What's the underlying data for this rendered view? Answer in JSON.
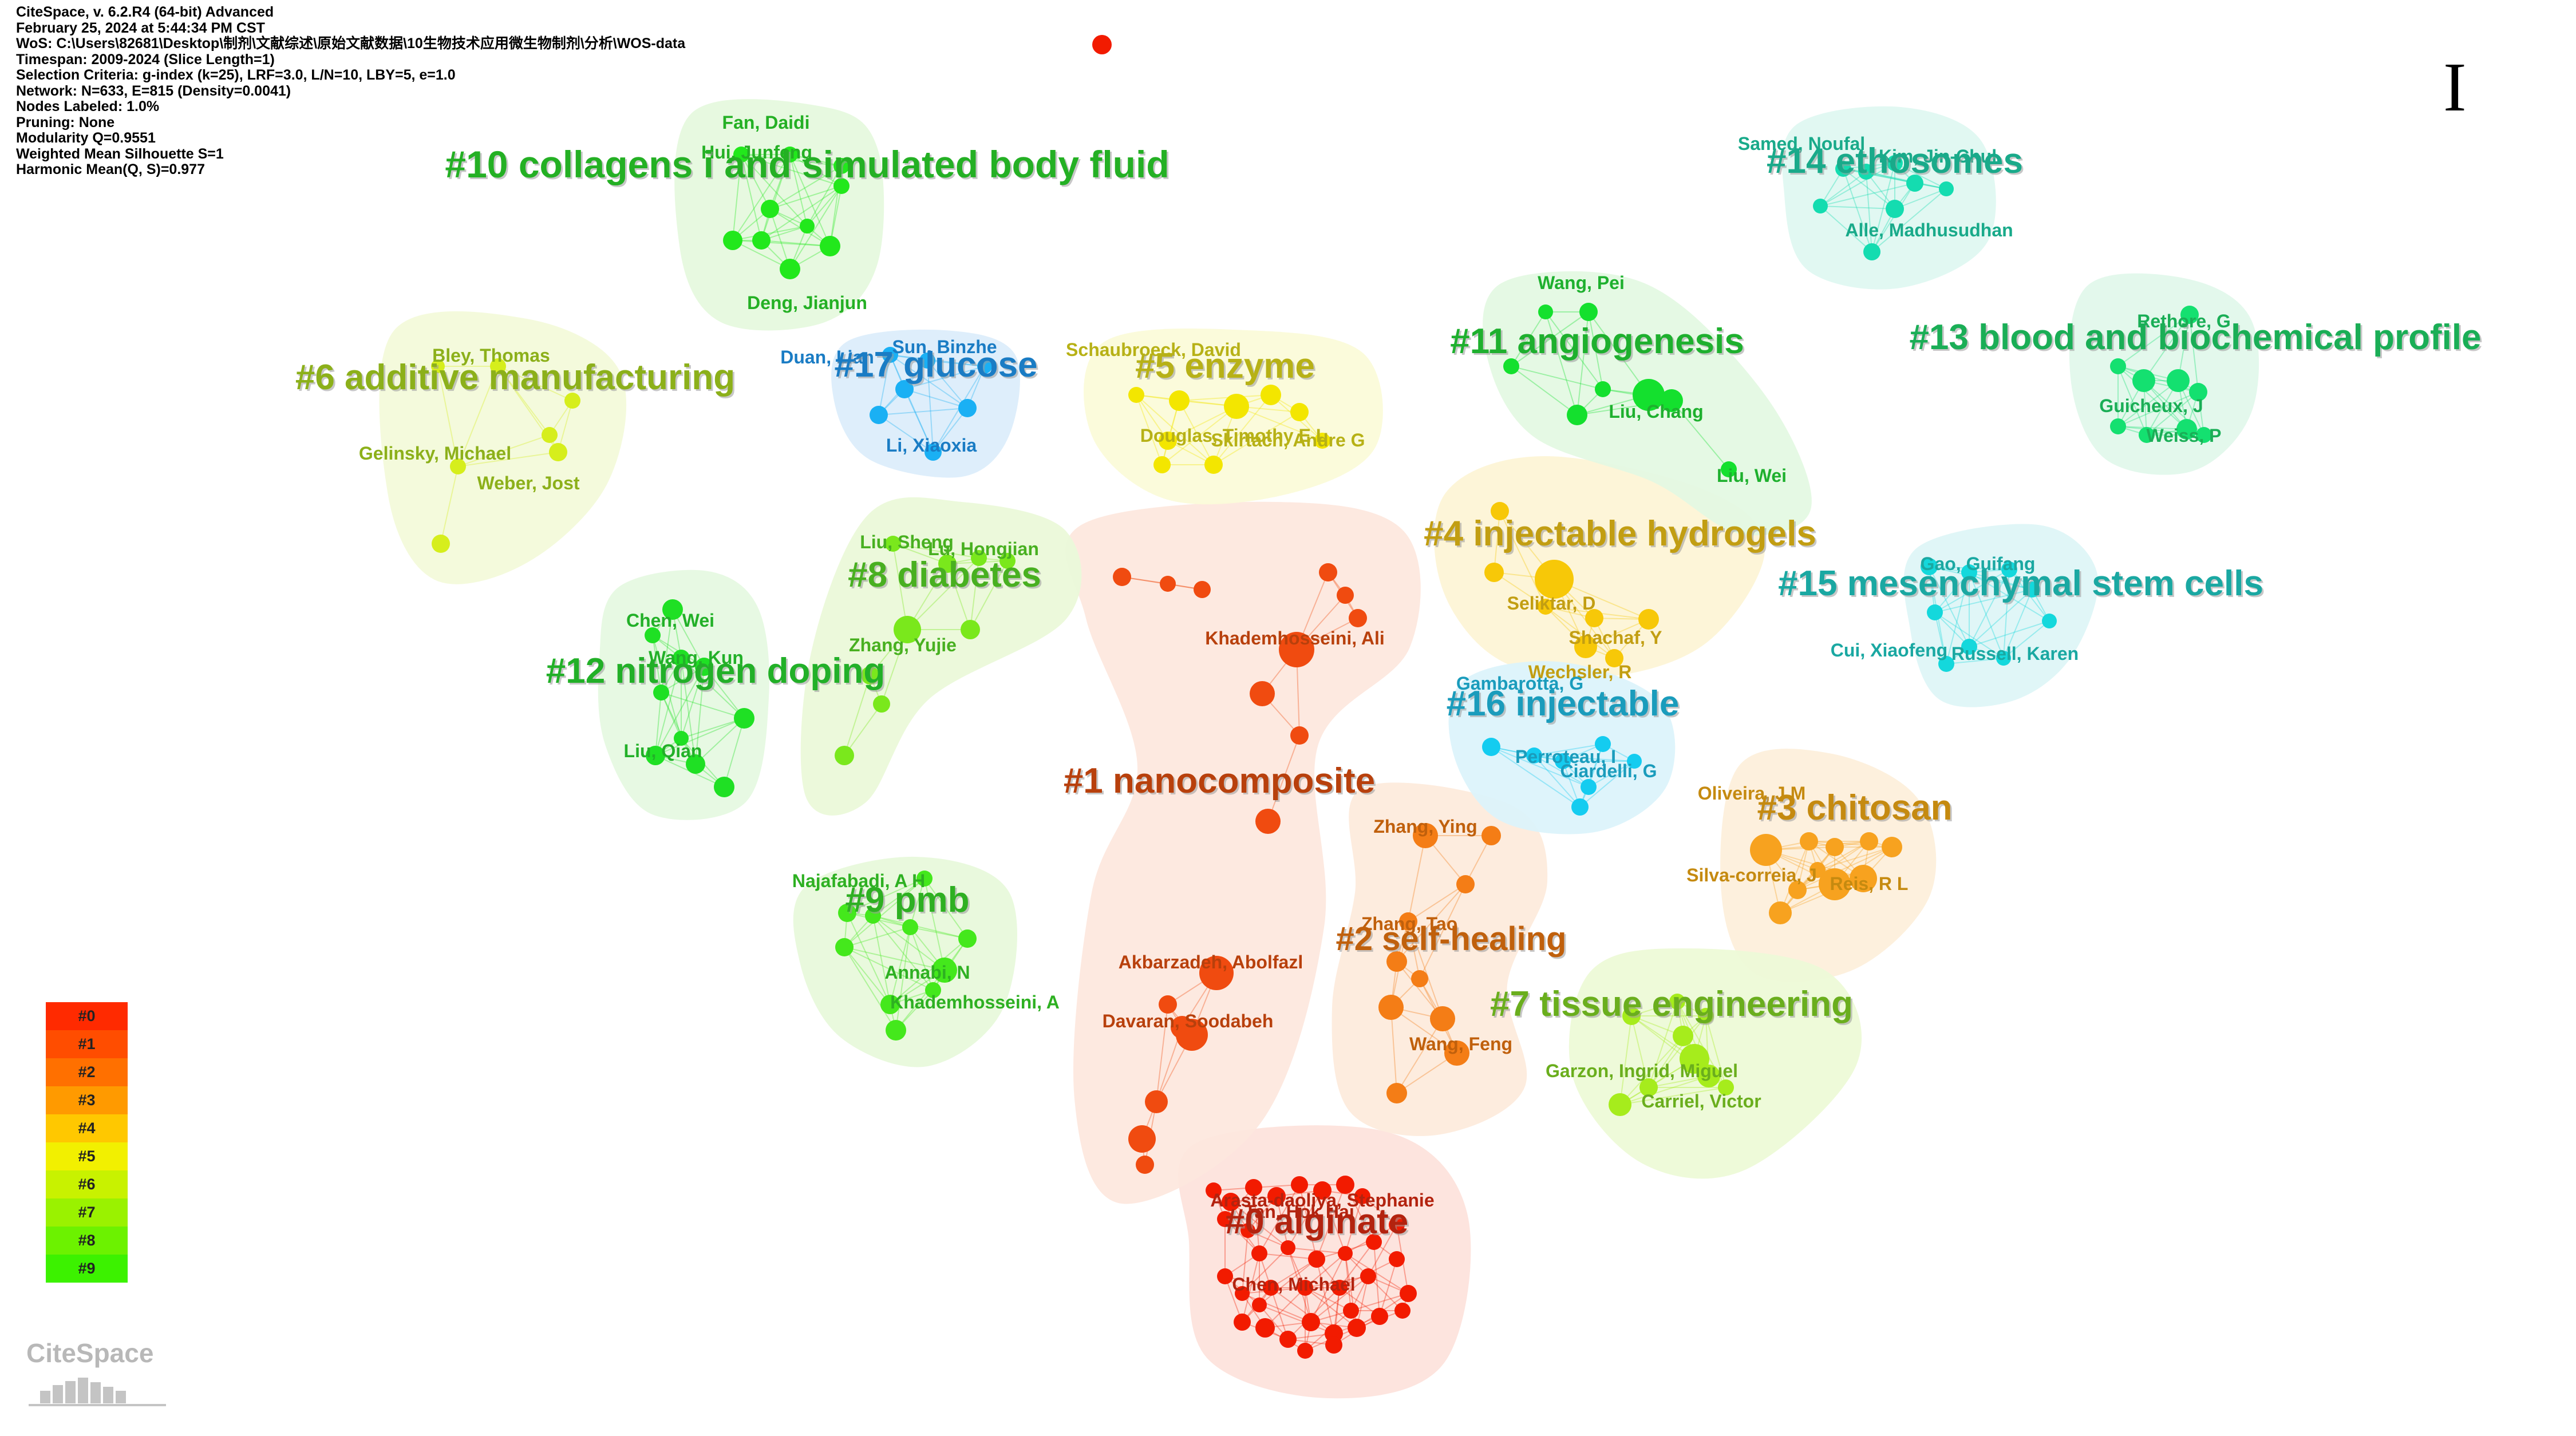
{
  "app": {
    "info_lines": [
      "CiteSpace, v. 6.2.R4 (64-bit) Advanced",
      "February 25, 2024 at 5:44:34 PM CST",
      "WoS: C:\\Users\\82681\\Desktop\\制剂\\文献综述\\原始文献数据\\10生物技术应用微生物制剂\\分析\\WOS-data",
      "Timespan: 2009-2024 (Slice Length=1)",
      "Selection Criteria: g-index (k=25), LRF=3.0, L/N=10, LBY=5, e=1.0",
      "Network: N=633, E=815 (Density=0.0041)",
      "Nodes Labeled: 1.0%",
      "Pruning: None",
      "Modularity Q=0.9551",
      "Weighted Mean Silhouette S=1",
      "Harmonic Mean(Q, S)=0.977"
    ],
    "figure_marker": "I",
    "logo_text": "CiteSpace"
  },
  "legend": {
    "items": [
      {
        "label": "#0",
        "color": "#ff2a00"
      },
      {
        "label": "#1",
        "color": "#ff4d00"
      },
      {
        "label": "#2",
        "color": "#ff7000"
      },
      {
        "label": "#3",
        "color": "#ff9a00"
      },
      {
        "label": "#4",
        "color": "#ffc800"
      },
      {
        "label": "#5",
        "color": "#f2f000"
      },
      {
        "label": "#6",
        "color": "#c8f200"
      },
      {
        "label": "#7",
        "color": "#9af200"
      },
      {
        "label": "#8",
        "color": "#6cf200"
      },
      {
        "label": "#9",
        "color": "#3cf200"
      }
    ]
  },
  "clusters": [
    {
      "id": "c0",
      "label": "#0 alginate",
      "color": "#b3230f",
      "hull": "#fde3dd",
      "node": "#f21b00"
    },
    {
      "id": "c1",
      "label": "#1 nanocomposite",
      "color": "#b8400c",
      "hull": "#fde8df",
      "node": "#f04b10"
    },
    {
      "id": "c2",
      "label": "#2 self-healing",
      "color": "#c0600c",
      "hull": "#fdebdd",
      "node": "#f47d16"
    },
    {
      "id": "c3",
      "label": "#3 chitosan",
      "color": "#c58a10",
      "hull": "#fdf0dc",
      "node": "#f7a21f"
    },
    {
      "id": "c4",
      "label": "#4 injectable hydrogels",
      "color": "#c29e12",
      "hull": "#fdf5d6",
      "node": "#f7c808"
    },
    {
      "id": "c5",
      "label": "#5 enzyme",
      "color": "#b7b116",
      "hull": "#fbfbda",
      "node": "#f3e600"
    },
    {
      "id": "c6",
      "label": "#6 additive manufacturing",
      "color": "#8cb01a",
      "hull": "#f4fadb",
      "node": "#d6ee1c"
    },
    {
      "id": "c7",
      "label": "#7 tissue engineering",
      "color": "#6aae1d",
      "hull": "#eefad8",
      "node": "#a6ec1c"
    },
    {
      "id": "c8",
      "label": "#8 diabetes",
      "color": "#48b020",
      "hull": "#ebf9da",
      "node": "#7ae81c"
    },
    {
      "id": "c9",
      "label": "#9 pmb",
      "color": "#2eb022",
      "hull": "#e8f9dc",
      "node": "#44e81c"
    },
    {
      "id": "c10",
      "label": "#10 collagens i and simulated body fluid",
      "color": "#24b024",
      "hull": "#e6f9df",
      "node": "#22e81c"
    },
    {
      "id": "c11",
      "label": "#11 angiogenesis",
      "color": "#1eb02e",
      "hull": "#e4f9e3",
      "node": "#14e02e"
    },
    {
      "id": "c12",
      "label": "#12 nitrogen doping",
      "color": "#22b028",
      "hull": "#e6f9e2",
      "node": "#1fe024"
    },
    {
      "id": "c13",
      "label": "#13 blood and biochemical profile",
      "color": "#1aae56",
      "hull": "#e2f8ec",
      "node": "#14e070"
    },
    {
      "id": "c14",
      "label": "#14 ethosomes",
      "color": "#19aa8a",
      "hull": "#e0f8f2",
      "node": "#14dcb0"
    },
    {
      "id": "c15",
      "label": "#15 mesenchymal stem cells",
      "color": "#1aa8a2",
      "hull": "#dff6f7",
      "node": "#14d8dc"
    },
    {
      "id": "c16",
      "label": "#16 injectable",
      "color": "#1a9cbc",
      "hull": "#ddf4fb",
      "node": "#14ccf0"
    },
    {
      "id": "c17",
      "label": "#17 glucose",
      "color": "#1a7cc4",
      "hull": "#ddeefb",
      "node": "#1ab0f4"
    }
  ],
  "authors": [
    {
      "name": "Fan, Daidi",
      "cluster": "c10"
    },
    {
      "name": "Hui, Junfeng",
      "cluster": "c10"
    },
    {
      "name": "Deng, Jianjun",
      "cluster": "c10"
    },
    {
      "name": "Bley, Thomas",
      "cluster": "c6"
    },
    {
      "name": "Gelinsky, Michael",
      "cluster": "c6"
    },
    {
      "name": "Weber, Jost",
      "cluster": "c6"
    },
    {
      "name": "Duan, Lian",
      "cluster": "c17"
    },
    {
      "name": "Sun, Binzhe",
      "cluster": "c17"
    },
    {
      "name": "Li, Xiaoxia",
      "cluster": "c17"
    },
    {
      "name": "Schaubroeck, David",
      "cluster": "c5"
    },
    {
      "name": "Douglas, Timothy E L",
      "cluster": "c5"
    },
    {
      "name": "Skirtach, Andre G",
      "cluster": "c5"
    },
    {
      "name": "Wang, Pei",
      "cluster": "c11"
    },
    {
      "name": "Liu, Chang",
      "cluster": "c11"
    },
    {
      "name": "Liu, Wei",
      "cluster": "c11"
    },
    {
      "name": "Samed, Noufal",
      "cluster": "c14"
    },
    {
      "name": "Kim, Jin-Chul",
      "cluster": "c14"
    },
    {
      "name": "Alle, Madhusudhan",
      "cluster": "c14"
    },
    {
      "name": "Rethore, G",
      "cluster": "c13"
    },
    {
      "name": "Guicheux, J",
      "cluster": "c13"
    },
    {
      "name": "Weiss, P",
      "cluster": "c13"
    },
    {
      "name": "Liu, Sheng",
      "cluster": "c8"
    },
    {
      "name": "Lu, Hongjian",
      "cluster": "c8"
    },
    {
      "name": "Zhang, Yujie",
      "cluster": "c8"
    },
    {
      "name": "Chen, Wei",
      "cluster": "c12"
    },
    {
      "name": "Wang, Kun",
      "cluster": "c12"
    },
    {
      "name": "Liu, Qian",
      "cluster": "c12"
    },
    {
      "name": "Khademhosseini, Ali",
      "cluster": "c1"
    },
    {
      "name": "Seliktar, D",
      "cluster": "c4"
    },
    {
      "name": "Shachaf, Y",
      "cluster": "c4"
    },
    {
      "name": "Wechsler, R",
      "cluster": "c4"
    },
    {
      "name": "Gao, Guifang",
      "cluster": "c15"
    },
    {
      "name": "Cui, Xiaofeng",
      "cluster": "c15"
    },
    {
      "name": "Russell, Karen",
      "cluster": "c15"
    },
    {
      "name": "Gambarotta, G",
      "cluster": "c16"
    },
    {
      "name": "Perroteau, I",
      "cluster": "c16"
    },
    {
      "name": "Ciardelli, G",
      "cluster": "c16"
    },
    {
      "name": "Oliveira, J M",
      "cluster": "c3"
    },
    {
      "name": "Silva-correia, J",
      "cluster": "c3"
    },
    {
      "name": "Reis, R L",
      "cluster": "c3"
    },
    {
      "name": "Zhang, Ying",
      "cluster": "c2"
    },
    {
      "name": "Zhang, Tao",
      "cluster": "c2"
    },
    {
      "name": "Wang, Feng",
      "cluster": "c2"
    },
    {
      "name": "Najafabadi, A H",
      "cluster": "c9"
    },
    {
      "name": "Annabi, N",
      "cluster": "c9"
    },
    {
      "name": "Khademhosseini, A",
      "cluster": "c9"
    },
    {
      "name": "Akbarzadeh, Abolfazl",
      "cluster": "c1"
    },
    {
      "name": "Davaran, Soodabeh",
      "cluster": "c1"
    },
    {
      "name": "Garzon, Ingrid, Miguel",
      "cluster": "c7"
    },
    {
      "name": "Carriel, Victor",
      "cluster": "c7"
    },
    {
      "name": "Arasta-daoliya, Stephanie",
      "cluster": "c0"
    },
    {
      "name": "Tan, Hok Hai",
      "cluster": "c0"
    },
    {
      "name": "Chen, Michael",
      "cluster": "c0"
    }
  ]
}
